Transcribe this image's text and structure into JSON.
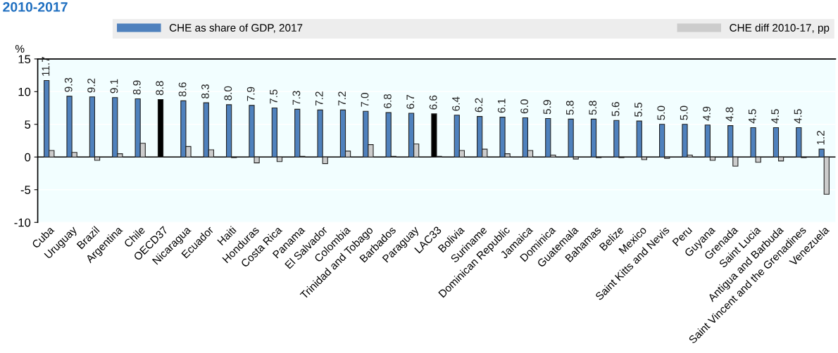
{
  "chart_data": {
    "type": "bar",
    "title": "2010-2017",
    "ylabel": "%",
    "categories": [
      "Cuba",
      "Uruguay",
      "Brazil",
      "Argentina",
      "Chile",
      "OECD37",
      "Nicaragua",
      "Ecuador",
      "Haiti",
      "Honduras",
      "Costa Rica",
      "Panama",
      "El Salvador",
      "Colombia",
      "Trinidad and Tobago",
      "Barbados",
      "Paraguay",
      "LAC33",
      "Bolivia",
      "Suriname",
      "Dominican Republic",
      "Jamaica",
      "Dominica",
      "Guatemala",
      "Bahamas",
      "Belize",
      "Mexico",
      "Saint Kitts and Nevis",
      "Peru",
      "Guyana",
      "Grenada",
      "Saint Lucia",
      "Antigua and Barbuda",
      "Saint Vincent and the Grenadines",
      "Venezuela"
    ],
    "series": [
      {
        "name": "CHE as share of GDP, 2017",
        "color": "#4f81bd",
        "colors": [
          "#4f81bd",
          "#4f81bd",
          "#4f81bd",
          "#4f81bd",
          "#4f81bd",
          "#000000",
          "#4f81bd",
          "#4f81bd",
          "#4f81bd",
          "#4f81bd",
          "#4f81bd",
          "#4f81bd",
          "#4f81bd",
          "#4f81bd",
          "#4f81bd",
          "#4f81bd",
          "#4f81bd",
          "#000000",
          "#4f81bd",
          "#4f81bd",
          "#4f81bd",
          "#4f81bd",
          "#4f81bd",
          "#4f81bd",
          "#4f81bd",
          "#4f81bd",
          "#4f81bd",
          "#4f81bd",
          "#4f81bd",
          "#4f81bd",
          "#4f81bd",
          "#4f81bd",
          "#4f81bd",
          "#4f81bd",
          "#4f81bd"
        ],
        "values": [
          11.7,
          9.3,
          9.2,
          9.1,
          8.9,
          8.8,
          8.6,
          8.3,
          8.0,
          7.9,
          7.5,
          7.3,
          7.2,
          7.2,
          7.0,
          6.8,
          6.7,
          6.6,
          6.4,
          6.2,
          6.1,
          6.0,
          5.9,
          5.8,
          5.8,
          5.6,
          5.5,
          5.0,
          5.0,
          4.9,
          4.8,
          4.5,
          4.5,
          4.5,
          1.2
        ],
        "value_labels": [
          "11.7",
          "9.3",
          "9.2",
          "9.1",
          "8.9",
          "8.8",
          "8.6",
          "8.3",
          "8.0",
          "7.9",
          "7.5",
          "7.3",
          "7.2",
          "7.2",
          "7.0",
          "6.8",
          "6.7",
          "6.6",
          "6.4",
          "6.2",
          "6.1",
          "6.0",
          "5.9",
          "5.8",
          "5.8",
          "5.6",
          "5.5",
          "5.0",
          "5.0",
          "4.9",
          "4.8",
          "4.5",
          "4.5",
          "4.5",
          "1.2"
        ]
      },
      {
        "name": "CHE diff 2010-17, pp",
        "color": "#cccccc",
        "values": [
          1.0,
          0.7,
          -0.5,
          0.5,
          2.1,
          null,
          1.6,
          1.1,
          -0.1,
          -0.9,
          -0.7,
          0.1,
          -1.0,
          0.9,
          1.9,
          0.1,
          2.0,
          0.1,
          1.0,
          1.2,
          0.5,
          1.0,
          0.3,
          -0.3,
          -0.1,
          -0.1,
          -0.4,
          -0.2,
          0.3,
          -0.5,
          -1.4,
          -0.8,
          -0.6,
          -0.1,
          -5.7
        ]
      }
    ],
    "ylim": [
      -10,
      15
    ],
    "yticks": [
      -10,
      -5,
      0,
      5,
      10,
      15
    ],
    "grid": "y",
    "legend": "top"
  }
}
